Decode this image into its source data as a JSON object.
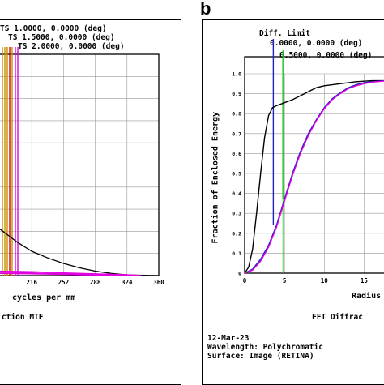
{
  "left_panel": {
    "legend": [
      "TS 1.0000, 0.0000 (deg)",
      "TS 1.5000, 0.0000 (deg)",
      "TS 2.0000, 0.0000 (deg)"
    ],
    "xlabel": "cycles per mm",
    "footer_title": "ction MTF"
  },
  "right_panel": {
    "letter": "b",
    "legend": [
      "Diff. Limit",
      "0.0000, 0.0000 (deg)",
      "0.5000, 0.0000 (deg)"
    ],
    "ylabel": "Fraction of Enclosed Energy",
    "xlabel": "Radius",
    "footer_title": "FFT Diffrac",
    "info": [
      "12-Mar-23",
      "Wavelength: Polychromatic",
      "Surface: Image (RETINA)"
    ]
  },
  "colors": {
    "orange": "#e08000",
    "olive": "#a8a000",
    "red": "#e00000",
    "magenta": "#e000e0",
    "blue": "#2020c0",
    "green": "#20c020",
    "black": "#000000"
  },
  "chart_data": [
    {
      "type": "line",
      "title": "ction MTF",
      "xlabel": "cycles per mm",
      "ylabel": "",
      "x_ticks": [
        "216",
        "252",
        "288",
        "324",
        "360"
      ],
      "xlim": [
        180,
        360
      ],
      "ylim": [
        0,
        1
      ],
      "grid": true,
      "series": [
        {
          "name": "",
          "color": "#000000",
          "x": [
            180,
            200,
            216,
            234,
            252,
            270,
            288,
            306,
            324,
            342,
            360
          ],
          "y": [
            0.21,
            0.15,
            0.11,
            0.08,
            0.055,
            0.035,
            0.02,
            0.01,
            0.003,
            0.001,
            0.0
          ]
        },
        {
          "name": "TS 1.0000, 0.0000 (deg)",
          "color": "#e000e0",
          "x": [
            180,
            216,
            252,
            288,
            324,
            340
          ],
          "y": [
            0.02,
            0.018,
            0.012,
            0.008,
            0.004,
            0.0
          ]
        },
        {
          "name": "TS 1.5000, 0.0000 (deg)",
          "color": "#e000e0",
          "x": [
            180,
            216,
            252,
            288,
            324,
            340
          ],
          "y": [
            0.015,
            0.012,
            0.008,
            0.004,
            0.002,
            0.0
          ]
        },
        {
          "name": "TS 2.0000, 0.0000 (deg)",
          "color": "#e000e0",
          "x": [
            180,
            216,
            252,
            288,
            324,
            340
          ],
          "y": [
            0.01,
            0.008,
            0.005,
            0.002,
            0.0,
            0.0
          ]
        }
      ]
    },
    {
      "type": "line",
      "title": "FFT Diffrac",
      "xlabel": "Radius",
      "ylabel": "Fraction of Enclosed Energy",
      "x_ticks": [
        "0",
        "5",
        "10",
        "15"
      ],
      "y_ticks": [
        "0",
        "0.1",
        "0.2",
        "0.3",
        "0.4",
        "0.5",
        "0.6",
        "0.7",
        "0.8",
        "0.9",
        "1.0"
      ],
      "xlim": [
        0,
        17.5
      ],
      "ylim": [
        0,
        1
      ],
      "grid": true,
      "series": [
        {
          "name": "Diff. Limit",
          "color": "#000000",
          "x": [
            0,
            0.5,
            1,
            1.5,
            2,
            2.5,
            3,
            3.5,
            4,
            5,
            6,
            7,
            8,
            9,
            10,
            12,
            14,
            16,
            17.5
          ],
          "y": [
            0,
            0.03,
            0.12,
            0.3,
            0.5,
            0.68,
            0.79,
            0.83,
            0.84,
            0.855,
            0.87,
            0.89,
            0.91,
            0.93,
            0.94,
            0.95,
            0.96,
            0.965,
            0.965
          ]
        },
        {
          "name": "0.0000, 0.0000 (deg)",
          "color": "#2020c0",
          "x": [
            0,
            1,
            2,
            3,
            4,
            5,
            6,
            7,
            8,
            9,
            10,
            11,
            12,
            13,
            14,
            15,
            16,
            17.5
          ],
          "y": [
            0,
            0.02,
            0.07,
            0.14,
            0.24,
            0.37,
            0.5,
            0.61,
            0.7,
            0.77,
            0.83,
            0.875,
            0.905,
            0.93,
            0.945,
            0.955,
            0.96,
            0.965
          ]
        },
        {
          "name": "0.5000, 0.0000 (deg)",
          "color": "#e000e0",
          "x": [
            0,
            1,
            2,
            3,
            4,
            5,
            6,
            7,
            8,
            9,
            10,
            11,
            12,
            13,
            14,
            15,
            16,
            17.5
          ],
          "y": [
            0,
            0.015,
            0.06,
            0.13,
            0.23,
            0.36,
            0.49,
            0.6,
            0.69,
            0.765,
            0.825,
            0.87,
            0.9,
            0.925,
            0.94,
            0.95,
            0.958,
            0.963
          ]
        }
      ]
    }
  ]
}
